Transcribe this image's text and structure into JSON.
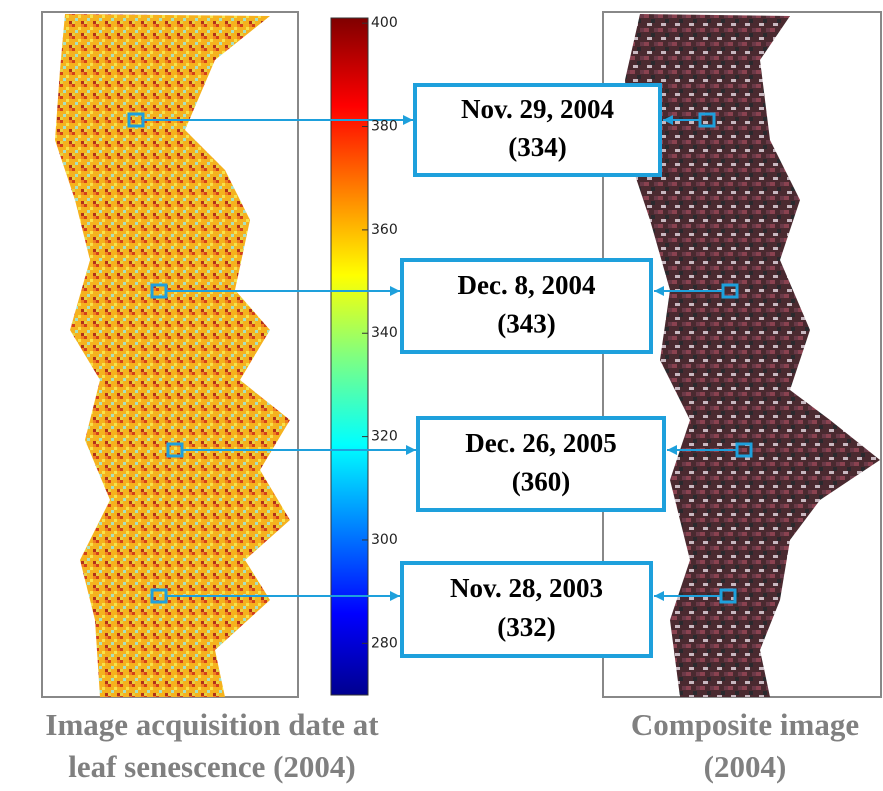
{
  "colorbar": {
    "lim": [
      270,
      401
    ],
    "ticks": [
      400,
      380,
      360,
      340,
      320,
      300,
      280
    ]
  },
  "callouts": [
    {
      "date": "Nov. 29, 2004",
      "doy": "(334)"
    },
    {
      "date": "Dec. 8, 2004",
      "doy": "(343)"
    },
    {
      "date": "Dec. 26, 2005",
      "doy": "(360)"
    },
    {
      "date": "Nov. 28, 2003",
      "doy": "(332)"
    }
  ],
  "captions": {
    "left": [
      "Image acquisition date at",
      "leaf senescence (2004)"
    ],
    "right": [
      "Composite image",
      "(2004)"
    ]
  }
}
